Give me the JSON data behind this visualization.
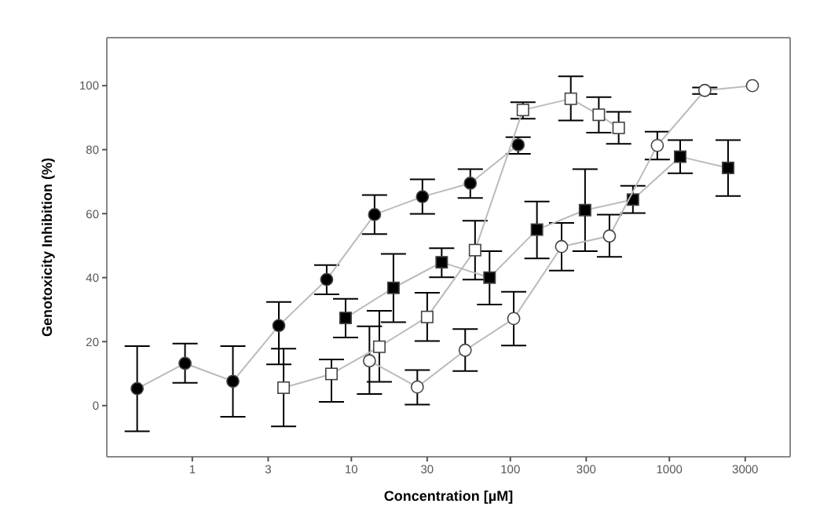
{
  "chart_data": {
    "type": "line",
    "xlabel": "Concentration [µM]",
    "ylabel": "Genotoxicity Inhibition (%)",
    "log": "x",
    "line_style": "solid",
    "xlim": [
      0.29,
      5750
    ],
    "xticks": [
      1,
      3,
      10,
      30,
      100,
      300,
      1000,
      3000
    ],
    "ylim": [
      -16,
      115
    ],
    "yticks": [
      0,
      20,
      40,
      60,
      80,
      100
    ],
    "series": [
      {
        "marker": "circle",
        "color": "#000000",
        "x": [
          0.45,
          0.9,
          1.8,
          3.5,
          7,
          14,
          28,
          56,
          112
        ],
        "values": [
          5.3,
          13.2,
          7.6,
          25,
          39.4,
          59.7,
          65.3,
          69.5,
          81.5
        ],
        "errors": [
          [
            -8,
            18.6
          ],
          [
            7.1,
            19.4
          ],
          [
            -3.5,
            18.6
          ],
          [
            12.9,
            32.4
          ],
          [
            34.8,
            43.9
          ],
          [
            53.6,
            65.8
          ],
          [
            59.9,
            70.7
          ],
          [
            64.9,
            73.9
          ],
          [
            78.7,
            83.9
          ]
        ]
      },
      {
        "marker": "square",
        "color": "#000000",
        "x": [
          9.2,
          18.4,
          37,
          74,
          147,
          295,
          590,
          1170,
          2340
        ],
        "values": [
          27.4,
          36.8,
          44.8,
          40,
          55,
          61.1,
          64.4,
          77.8,
          74.3
        ],
        "errors": [
          [
            21.3,
            33.4
          ],
          [
            26.1,
            47.4
          ],
          [
            40.1,
            49.2
          ],
          [
            31.6,
            48.3
          ],
          [
            46,
            63.8
          ],
          [
            48.3,
            73.9
          ],
          [
            60.2,
            68.7
          ],
          [
            72.6,
            83
          ],
          [
            65.5,
            83
          ]
        ]
      },
      {
        "marker": "square",
        "color": "#ffffff",
        "x": [
          3.75,
          7.5,
          15,
          30,
          60,
          120,
          240,
          360,
          480
        ],
        "values": [
          5.6,
          9.9,
          18.4,
          27.7,
          48.6,
          92.4,
          95.9,
          90.9,
          86.8
        ],
        "errors": [
          [
            -6.5,
            17.8
          ],
          [
            1.2,
            14.4
          ],
          [
            7.4,
            29.6
          ],
          [
            20.2,
            35.3
          ],
          [
            39.4,
            57.8
          ],
          [
            89.7,
            94.8
          ],
          [
            89.1,
            102.9
          ],
          [
            85.3,
            96.4
          ],
          [
            81.8,
            91.8
          ]
        ]
      },
      {
        "marker": "circle",
        "color": "#ffffff",
        "x": [
          13,
          26,
          52,
          105,
          210,
          420,
          840,
          1670,
          3330
        ],
        "values": [
          14,
          5.8,
          17.3,
          27.2,
          49.7,
          53,
          81.3,
          98.5,
          100
        ],
        "errors": [
          [
            3.6,
            24.8
          ],
          [
            0.3,
            11.1
          ],
          [
            10.8,
            23.9
          ],
          [
            18.8,
            35.6
          ],
          [
            42.2,
            57.1
          ],
          [
            46.5,
            59.7
          ],
          [
            76.9,
            85.6
          ],
          [
            97.4,
            99.4
          ],
          null
        ]
      }
    ]
  }
}
